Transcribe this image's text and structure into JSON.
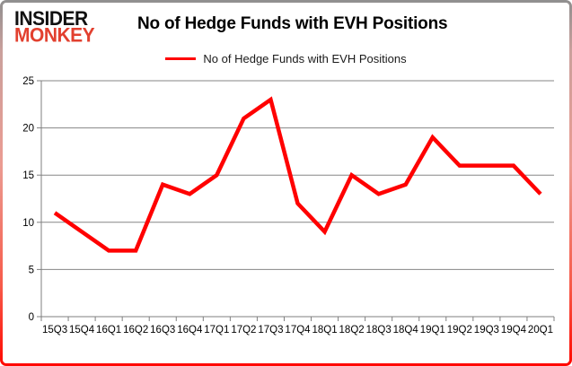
{
  "logo": {
    "line1": "INSIDER",
    "line2": "MONKEY"
  },
  "header": {
    "title": "No of Hedge Funds with EVH Positions"
  },
  "legend": {
    "label": "No of Hedge Funds with EVH Positions",
    "color": "#ff0000"
  },
  "chart_data": {
    "type": "line",
    "title": "No of Hedge Funds with EVH Positions",
    "series_name": "No of Hedge Funds with EVH Positions",
    "categories": [
      "15Q3",
      "15Q4",
      "16Q1",
      "16Q2",
      "16Q3",
      "16Q4",
      "17Q1",
      "17Q2",
      "17Q3",
      "17Q4",
      "18Q1",
      "18Q2",
      "18Q3",
      "18Q4",
      "19Q1",
      "19Q2",
      "19Q3",
      "19Q4",
      "20Q1"
    ],
    "values": [
      11,
      9,
      7,
      7,
      14,
      13,
      15,
      21,
      23,
      12,
      9,
      15,
      13,
      14,
      19,
      16,
      16,
      16,
      13
    ],
    "xlabel": "",
    "ylabel": "",
    "ylim": [
      0,
      25
    ],
    "yticks": [
      0,
      5,
      10,
      15,
      20,
      25
    ],
    "grid": true,
    "legend_position": "top-center",
    "line_color": "#ff0000",
    "grid_color": "#868686",
    "axis_color": "#7f7f7f",
    "tick_label_color": "#000000"
  },
  "colors": {
    "logo_accent": "#e2402f",
    "border_bottom": "#ff0800",
    "background": "#ffffff"
  }
}
